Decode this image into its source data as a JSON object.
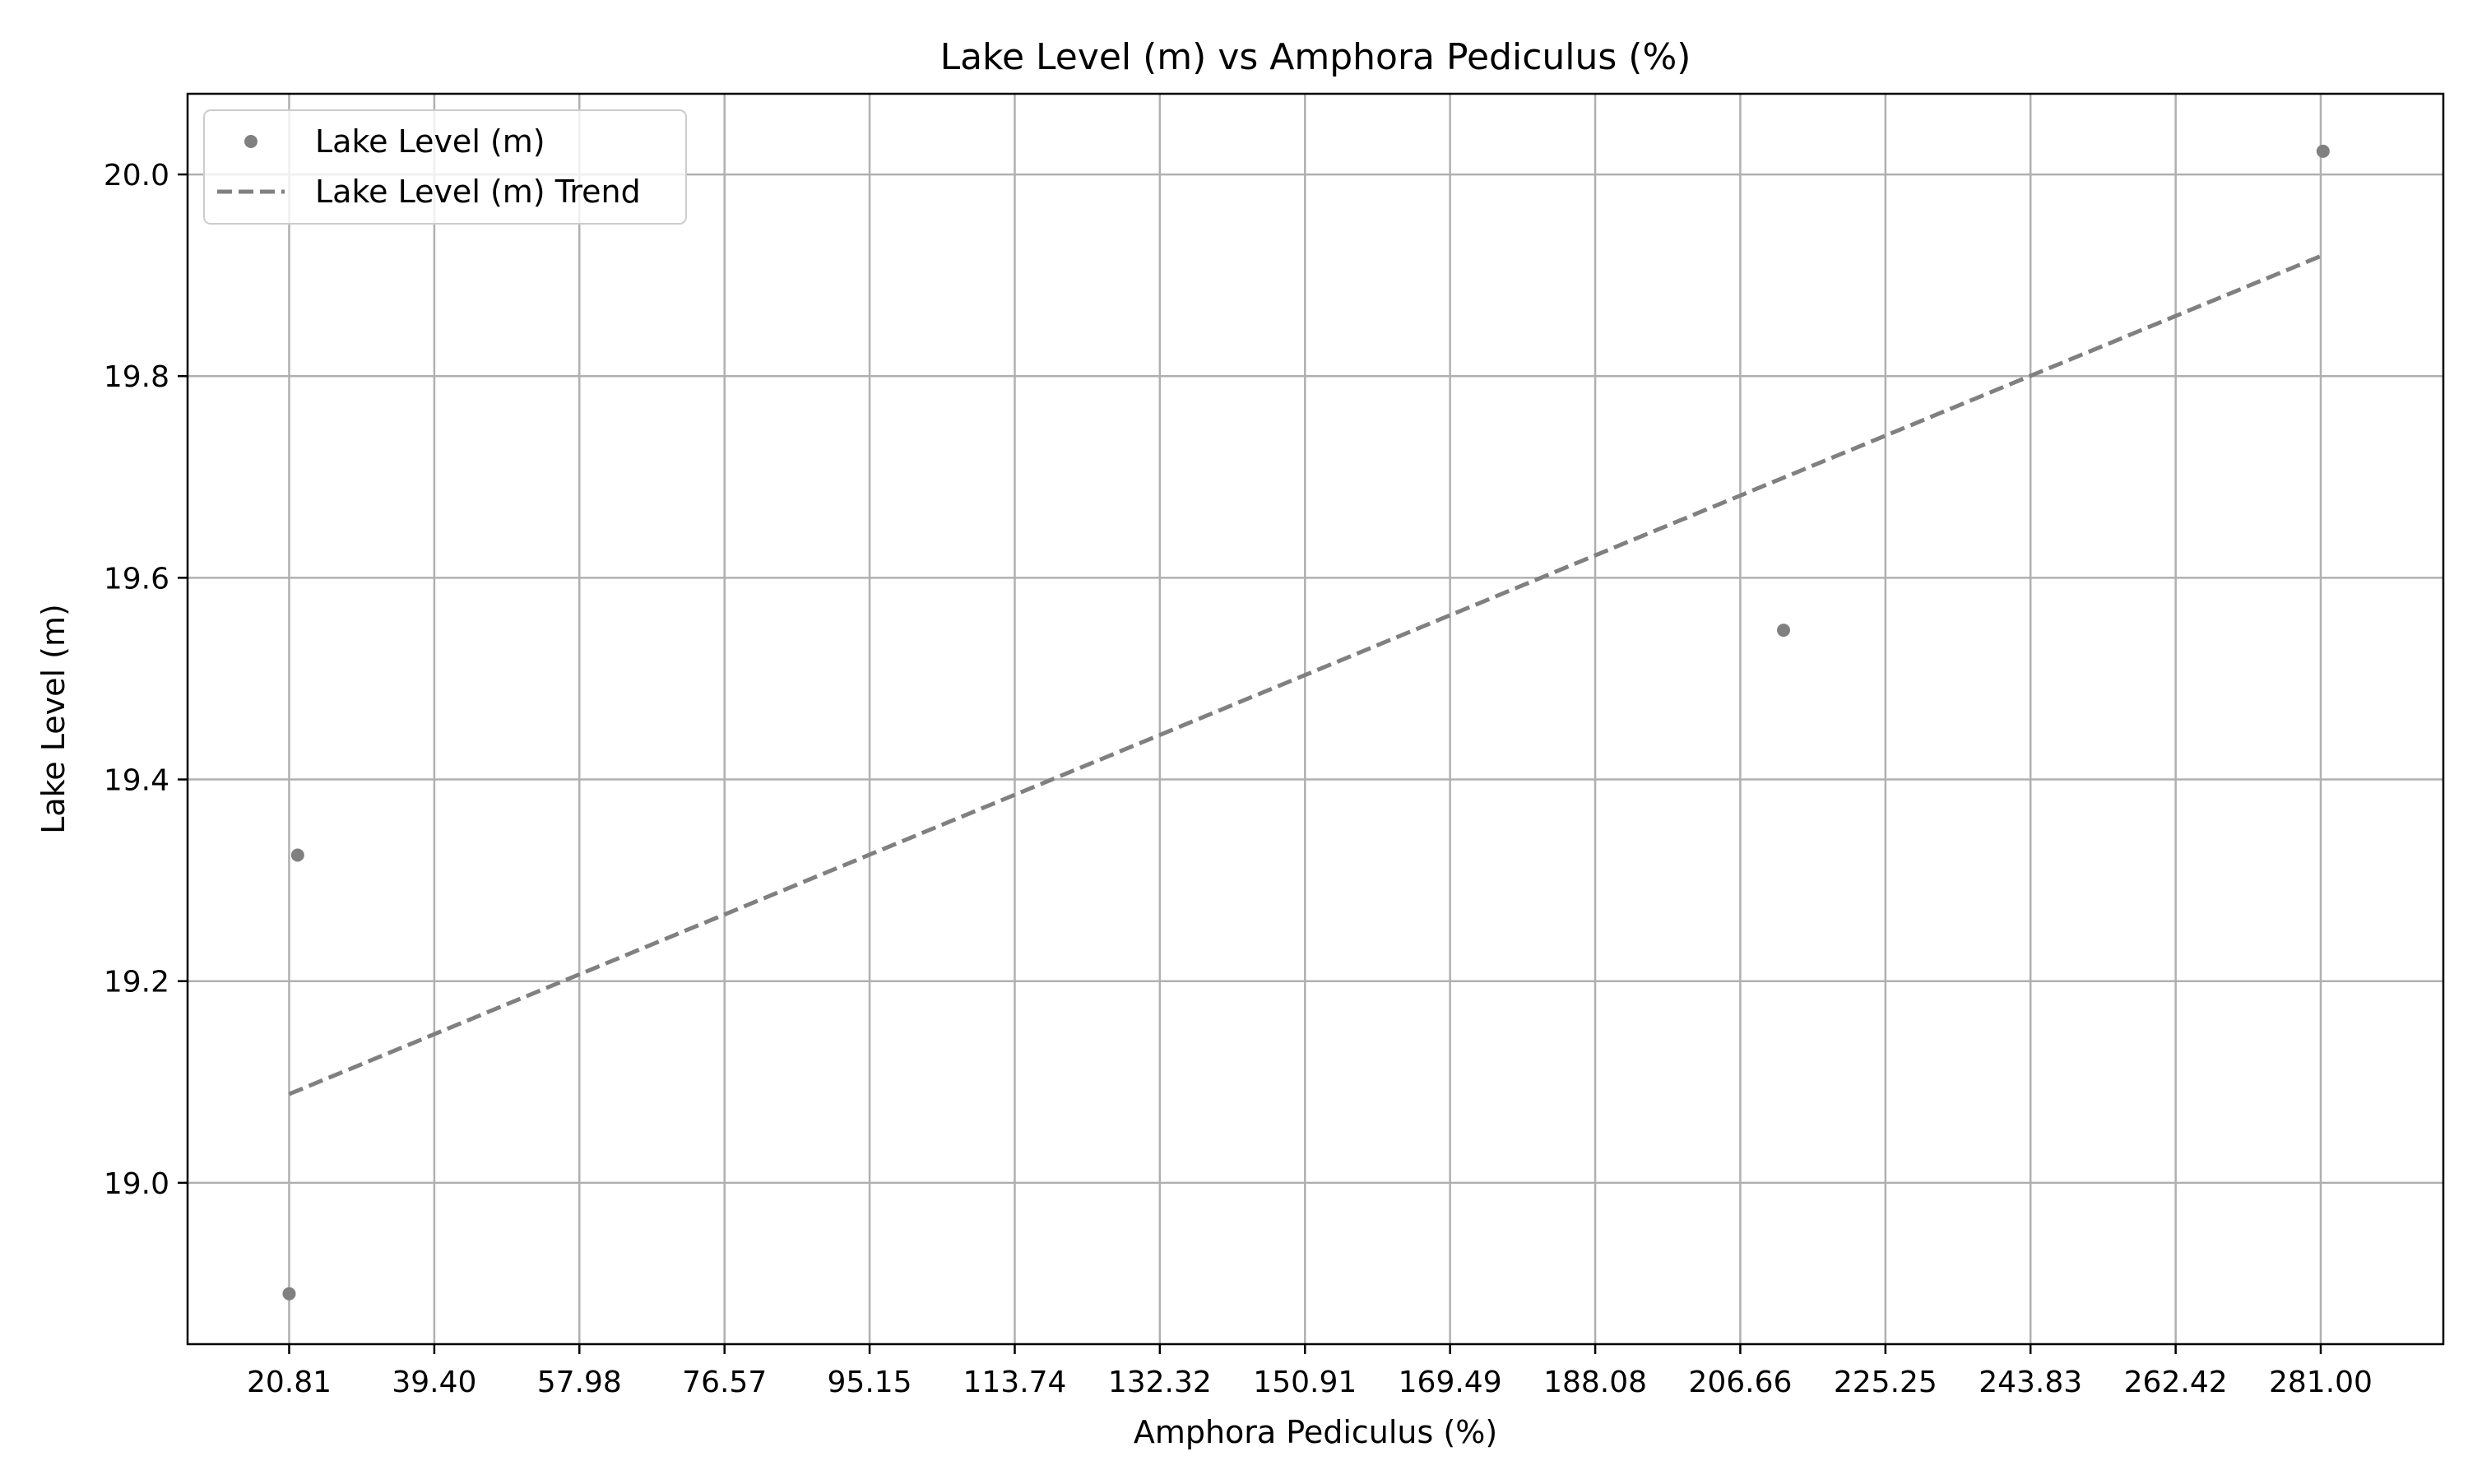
{
  "chart_data": {
    "type": "scatter",
    "title": "Lake Level (m) vs Amphora Pediculus (%)",
    "xlabel": "Amphora Pediculus (%)",
    "ylabel": "Lake Level (m)",
    "xlim": [
      7.8,
      296.7
    ],
    "ylim": [
      18.84,
      20.08
    ],
    "xticks": [
      20.81,
      39.4,
      57.98,
      76.57,
      95.15,
      113.74,
      132.32,
      150.91,
      169.49,
      188.08,
      206.66,
      225.25,
      243.83,
      262.42,
      281.0
    ],
    "xtick_labels": [
      "20.81",
      "39.40",
      "57.98",
      "76.57",
      "95.15",
      "113.74",
      "132.32",
      "150.91",
      "169.49",
      "188.08",
      "206.66",
      "225.25",
      "243.83",
      "262.42",
      "281.00"
    ],
    "yticks": [
      19.0,
      19.2,
      19.4,
      19.6,
      19.8,
      20.0
    ],
    "ytick_labels": [
      "19.0",
      "19.2",
      "19.4",
      "19.6",
      "19.8",
      "20.0"
    ],
    "grid": true,
    "legend_position": "top-left",
    "colors": {
      "series": "#808080",
      "grid": "#b0b0b0",
      "axes": "#000000"
    },
    "series": [
      {
        "name": "Lake Level (m)",
        "kind": "scatter",
        "points": [
          {
            "x": 20.81,
            "y": 18.89
          },
          {
            "x": 21.9,
            "y": 19.325
          },
          {
            "x": 212.2,
            "y": 19.548
          },
          {
            "x": 281.3,
            "y": 20.023
          }
        ]
      },
      {
        "name": "Lake Level (m) Trend",
        "kind": "line",
        "style": "dashed",
        "points": [
          {
            "x": 20.81,
            "y": 19.088
          },
          {
            "x": 281.0,
            "y": 19.919
          }
        ]
      }
    ]
  }
}
